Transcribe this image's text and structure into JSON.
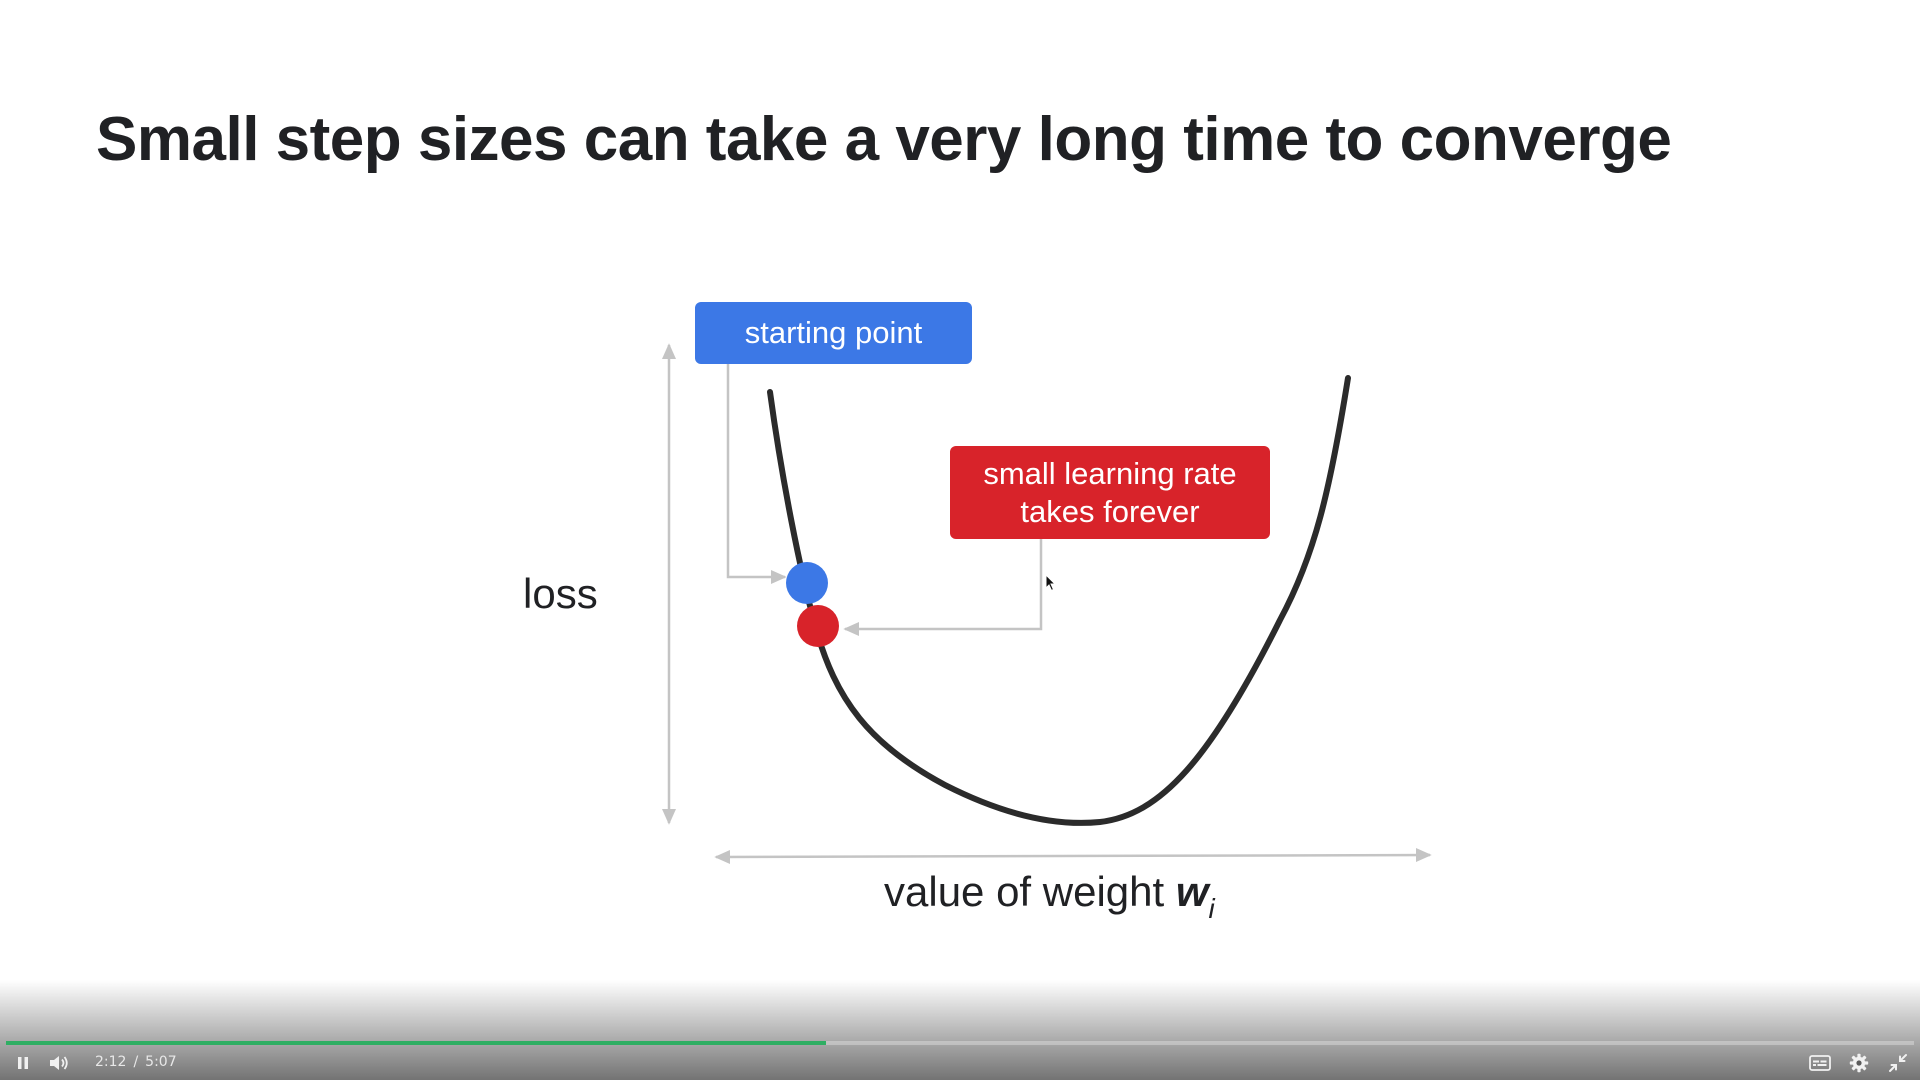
{
  "slide": {
    "title": "Small step sizes can take a very long time to converge"
  },
  "diagram": {
    "y_axis_label": "loss",
    "x_axis_label_prefix": "value of weight ",
    "x_axis_label_var": "w",
    "x_axis_label_sub": "i",
    "callouts": {
      "starting_point": "starting point",
      "small_lr_line1": "small learning rate",
      "small_lr_line2": "takes forever"
    },
    "colors": {
      "blue": "#3c78e6",
      "red": "#d8232a",
      "curve": "#2b2b2b",
      "axis": "#c4c4c4"
    }
  },
  "player": {
    "current_time": "2:12",
    "separator": "/",
    "duration": "5:07",
    "progress_fraction": 0.43,
    "buffered_fraction": 0.43,
    "icons": {
      "play_pause": "pause-icon",
      "volume": "volume-icon",
      "captions": "captions-icon",
      "settings": "gear-icon",
      "fullscreen": "exit-fullscreen-icon"
    },
    "accent": "#2fae63"
  }
}
